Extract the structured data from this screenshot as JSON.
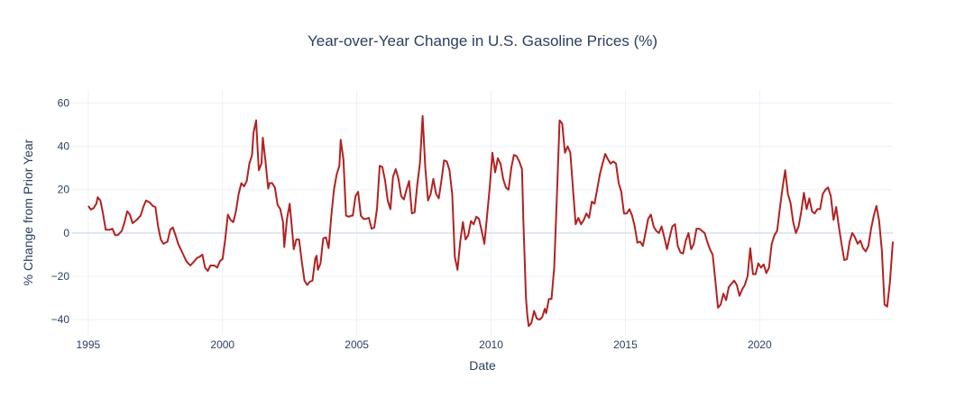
{
  "chart_data": {
    "type": "line",
    "title": "Year-over-Year Change in U.S. Gasoline Prices (%)",
    "xlabel": "Date",
    "ylabel": "% Change from Prior Year",
    "x_ticks": [
      "1995",
      "2000",
      "2005",
      "2010",
      "2015",
      "2020"
    ],
    "x_tick_values": [
      1995,
      2000,
      2005,
      2010,
      2015,
      2020
    ],
    "y_ticks": [
      "−40",
      "−20",
      "0",
      "20",
      "40",
      "60"
    ],
    "y_tick_values": [
      -40,
      -20,
      0,
      20,
      40,
      60
    ],
    "xlim": [
      1994.4,
      2024.96
    ],
    "ylim": [
      -47,
      66
    ],
    "grid": true,
    "colors": {
      "line": "#b22222",
      "grid": "#ebf0f8",
      "text": "#2a3f5f"
    },
    "series": [
      {
        "points": [
          [
            1995.0,
            12.5
          ],
          [
            1995.1,
            10.8
          ],
          [
            1995.2,
            11.5
          ],
          [
            1995.3,
            13.5
          ],
          [
            1995.35,
            16.5
          ],
          [
            1995.45,
            15.0
          ],
          [
            1995.55,
            9.0
          ],
          [
            1995.65,
            1.5
          ],
          [
            1995.8,
            1.5
          ],
          [
            1995.9,
            2.0
          ],
          [
            1996.0,
            -1.0
          ],
          [
            1996.1,
            -1.0
          ],
          [
            1996.25,
            1.0
          ],
          [
            1996.35,
            5.0
          ],
          [
            1996.45,
            10.0
          ],
          [
            1996.55,
            8.5
          ],
          [
            1996.65,
            4.5
          ],
          [
            1996.8,
            6.0
          ],
          [
            1996.95,
            8.0
          ],
          [
            1997.05,
            12.0
          ],
          [
            1997.15,
            15.0
          ],
          [
            1997.3,
            14.0
          ],
          [
            1997.4,
            12.5
          ],
          [
            1997.5,
            12.0
          ],
          [
            1997.6,
            3.0
          ],
          [
            1997.7,
            -3.0
          ],
          [
            1997.8,
            -5.0
          ],
          [
            1997.95,
            -4.0
          ],
          [
            1998.05,
            1.5
          ],
          [
            1998.15,
            2.5
          ],
          [
            1998.25,
            -1.0
          ],
          [
            1998.35,
            -5.0
          ],
          [
            1998.5,
            -9.0
          ],
          [
            1998.65,
            -13.0
          ],
          [
            1998.8,
            -15.0
          ],
          [
            1998.95,
            -13.0
          ],
          [
            1999.05,
            -11.5
          ],
          [
            1999.15,
            -11.0
          ],
          [
            1999.25,
            -10.0
          ],
          [
            1999.35,
            -16.0
          ],
          [
            1999.45,
            -17.5
          ],
          [
            1999.55,
            -15.0
          ],
          [
            1999.7,
            -15.0
          ],
          [
            1999.8,
            -16.0
          ],
          [
            1999.9,
            -13.0
          ],
          [
            2000.0,
            -12.0
          ],
          [
            2000.1,
            -3.0
          ],
          [
            2000.2,
            8.5
          ],
          [
            2000.3,
            6.0
          ],
          [
            2000.4,
            5.0
          ],
          [
            2000.5,
            10.0
          ],
          [
            2000.6,
            18.0
          ],
          [
            2000.7,
            23.0
          ],
          [
            2000.8,
            21.5
          ],
          [
            2000.9,
            24.0
          ],
          [
            2001.0,
            32.0
          ],
          [
            2001.05,
            34.0
          ],
          [
            2001.1,
            36.0
          ],
          [
            2001.15,
            46.0
          ],
          [
            2001.25,
            52.0
          ],
          [
            2001.3,
            40.0
          ],
          [
            2001.35,
            29.0
          ],
          [
            2001.45,
            32.0
          ],
          [
            2001.5,
            44.0
          ],
          [
            2001.6,
            33.0
          ],
          [
            2001.7,
            20.5
          ],
          [
            2001.75,
            23.0
          ],
          [
            2001.85,
            23.0
          ],
          [
            2001.95,
            21.0
          ],
          [
            2002.05,
            13.0
          ],
          [
            2002.15,
            11.0
          ],
          [
            2002.25,
            5.0
          ],
          [
            2002.3,
            -6.5
          ],
          [
            2002.4,
            6.5
          ],
          [
            2002.5,
            13.5
          ],
          [
            2002.6,
            0.0
          ],
          [
            2002.65,
            -7.5
          ],
          [
            2002.75,
            -3.0
          ],
          [
            2002.85,
            -3.0
          ],
          [
            2002.95,
            -13.0
          ],
          [
            2003.05,
            -22.0
          ],
          [
            2003.15,
            -24.0
          ],
          [
            2003.25,
            -22.5
          ],
          [
            2003.35,
            -22.0
          ],
          [
            2003.45,
            -12.0
          ],
          [
            2003.5,
            -10.5
          ],
          [
            2003.55,
            -17.0
          ],
          [
            2003.65,
            -14.0
          ],
          [
            2003.75,
            -2.5
          ],
          [
            2003.85,
            -2.0
          ],
          [
            2003.95,
            -7.0
          ],
          [
            2004.05,
            8.0
          ],
          [
            2004.15,
            20.0
          ],
          [
            2004.25,
            27.0
          ],
          [
            2004.35,
            31.0
          ],
          [
            2004.4,
            43.0
          ],
          [
            2004.5,
            34.0
          ],
          [
            2004.6,
            8.0
          ],
          [
            2004.7,
            7.5
          ],
          [
            2004.8,
            8.0
          ],
          [
            2004.85,
            8.0
          ],
          [
            2004.95,
            17.0
          ],
          [
            2005.05,
            19.0
          ],
          [
            2005.15,
            8.0
          ],
          [
            2005.25,
            6.5
          ],
          [
            2005.35,
            6.5
          ],
          [
            2005.45,
            7.0
          ],
          [
            2005.55,
            2.0
          ],
          [
            2005.65,
            2.5
          ],
          [
            2005.75,
            11.0
          ],
          [
            2005.85,
            31.0
          ],
          [
            2005.95,
            30.5
          ],
          [
            2006.05,
            24.5
          ],
          [
            2006.15,
            15.0
          ],
          [
            2006.25,
            11.0
          ],
          [
            2006.35,
            26.0
          ],
          [
            2006.45,
            29.5
          ],
          [
            2006.55,
            25.0
          ],
          [
            2006.65,
            17.0
          ],
          [
            2006.75,
            15.5
          ],
          [
            2006.85,
            20.0
          ],
          [
            2006.95,
            24.0
          ],
          [
            2007.05,
            9.0
          ],
          [
            2007.15,
            9.5
          ],
          [
            2007.25,
            22.0
          ],
          [
            2007.35,
            32.0
          ],
          [
            2007.45,
            54.0
          ],
          [
            2007.55,
            30.0
          ],
          [
            2007.65,
            15.0
          ],
          [
            2007.75,
            18.0
          ],
          [
            2007.85,
            25.0
          ],
          [
            2007.95,
            18.0
          ],
          [
            2008.05,
            16.0
          ],
          [
            2008.15,
            24.0
          ],
          [
            2008.25,
            33.5
          ],
          [
            2008.35,
            33.0
          ],
          [
            2008.45,
            29.0
          ],
          [
            2008.55,
            18.0
          ],
          [
            2008.65,
            -11.0
          ],
          [
            2008.75,
            -17.0
          ],
          [
            2008.85,
            -4.0
          ],
          [
            2008.95,
            5.0
          ],
          [
            2009.05,
            -3.0
          ],
          [
            2009.15,
            -1.0
          ],
          [
            2009.25,
            5.5
          ],
          [
            2009.35,
            4.0
          ],
          [
            2009.45,
            7.5
          ],
          [
            2009.55,
            6.5
          ],
          [
            2009.65,
            1.0
          ],
          [
            2009.75,
            -5.0
          ],
          [
            2009.85,
            8.0
          ],
          [
            2009.95,
            21.0
          ],
          [
            2010.05,
            37.0
          ],
          [
            2010.15,
            28.0
          ],
          [
            2010.25,
            34.5
          ],
          [
            2010.35,
            32.0
          ],
          [
            2010.45,
            25.0
          ],
          [
            2010.55,
            21.0
          ],
          [
            2010.65,
            20.0
          ],
          [
            2010.75,
            30.0
          ],
          [
            2010.85,
            36.0
          ],
          [
            2010.95,
            35.5
          ],
          [
            2011.05,
            33.0
          ],
          [
            2011.15,
            29.5
          ],
          [
            2011.2,
            6.0
          ],
          [
            2011.3,
            -30.0
          ],
          [
            2011.35,
            -38.0
          ],
          [
            2011.4,
            -43.0
          ],
          [
            2011.5,
            -41.5
          ],
          [
            2011.6,
            -36.0
          ],
          [
            2011.7,
            -39.5
          ],
          [
            2011.8,
            -40.0
          ],
          [
            2011.9,
            -39.0
          ],
          [
            2012.0,
            -35.0
          ],
          [
            2012.05,
            -37.0
          ],
          [
            2012.15,
            -30.5
          ],
          [
            2012.25,
            -30.5
          ],
          [
            2012.35,
            -16.0
          ],
          [
            2012.45,
            17.0
          ],
          [
            2012.55,
            52.0
          ],
          [
            2012.65,
            50.5
          ],
          [
            2012.75,
            37.0
          ],
          [
            2012.85,
            40.0
          ],
          [
            2012.95,
            37.0
          ],
          [
            2013.05,
            20.0
          ],
          [
            2013.15,
            4.0
          ],
          [
            2013.25,
            7.0
          ],
          [
            2013.35,
            4.0
          ],
          [
            2013.45,
            6.0
          ],
          [
            2013.55,
            9.0
          ],
          [
            2013.65,
            7.0
          ],
          [
            2013.75,
            14.5
          ],
          [
            2013.85,
            13.5
          ],
          [
            2013.95,
            20.0
          ],
          [
            2014.05,
            27.0
          ],
          [
            2014.15,
            32.0
          ],
          [
            2014.25,
            36.5
          ],
          [
            2014.35,
            34.0
          ],
          [
            2014.45,
            32.0
          ],
          [
            2014.55,
            33.0
          ],
          [
            2014.65,
            32.0
          ],
          [
            2014.75,
            23.0
          ],
          [
            2014.85,
            19.0
          ],
          [
            2014.95,
            9.0
          ],
          [
            2015.05,
            9.0
          ],
          [
            2015.15,
            11.0
          ],
          [
            2015.25,
            8.0
          ],
          [
            2015.35,
            3.0
          ],
          [
            2015.45,
            -4.5
          ],
          [
            2015.55,
            -4.0
          ],
          [
            2015.65,
            -6.0
          ],
          [
            2015.75,
            0.0
          ],
          [
            2015.85,
            6.5
          ],
          [
            2015.95,
            8.5
          ],
          [
            2016.05,
            3.0
          ],
          [
            2016.15,
            1.0
          ],
          [
            2016.25,
            0.0
          ],
          [
            2016.35,
            3.0
          ],
          [
            2016.45,
            -2.0
          ],
          [
            2016.55,
            -7.5
          ],
          [
            2016.65,
            -2.0
          ],
          [
            2016.75,
            3.0
          ],
          [
            2016.85,
            4.0
          ],
          [
            2016.95,
            -6.0
          ],
          [
            2017.05,
            -9.0
          ],
          [
            2017.15,
            -9.5
          ],
          [
            2017.25,
            -3.5
          ],
          [
            2017.35,
            0.0
          ],
          [
            2017.45,
            -7.5
          ],
          [
            2017.55,
            -5.0
          ],
          [
            2017.65,
            2.0
          ],
          [
            2017.75,
            2.0
          ],
          [
            2017.85,
            1.0
          ],
          [
            2017.95,
            0.0
          ],
          [
            2018.05,
            -4.0
          ],
          [
            2018.15,
            -7.5
          ],
          [
            2018.25,
            -10.0
          ],
          [
            2018.35,
            -22.0
          ],
          [
            2018.45,
            -34.5
          ],
          [
            2018.55,
            -33.0
          ],
          [
            2018.65,
            -28.0
          ],
          [
            2018.75,
            -31.0
          ],
          [
            2018.85,
            -25.0
          ],
          [
            2018.95,
            -23.5
          ],
          [
            2019.05,
            -22.0
          ],
          [
            2019.15,
            -24.0
          ],
          [
            2019.25,
            -29.0
          ],
          [
            2019.35,
            -26.0
          ],
          [
            2019.45,
            -24.0
          ],
          [
            2019.55,
            -20.0
          ],
          [
            2019.65,
            -7.0
          ],
          [
            2019.75,
            -19.0
          ],
          [
            2019.85,
            -19.0
          ],
          [
            2019.95,
            -14.0
          ],
          [
            2020.05,
            -16.0
          ],
          [
            2020.15,
            -14.5
          ],
          [
            2020.25,
            -18.5
          ],
          [
            2020.35,
            -16.0
          ],
          [
            2020.45,
            -5.0
          ],
          [
            2020.55,
            -1.0
          ],
          [
            2020.65,
            1.0
          ],
          [
            2020.75,
            11.0
          ],
          [
            2020.85,
            20.5
          ],
          [
            2020.95,
            29.0
          ],
          [
            2021.05,
            18.0
          ],
          [
            2021.15,
            14.0
          ],
          [
            2021.25,
            5.0
          ],
          [
            2021.35,
            0.0
          ],
          [
            2021.45,
            3.0
          ],
          [
            2021.55,
            10.0
          ],
          [
            2021.65,
            18.5
          ],
          [
            2021.75,
            11.0
          ],
          [
            2021.85,
            16.0
          ],
          [
            2021.95,
            10.0
          ],
          [
            2022.05,
            9.0
          ],
          [
            2022.15,
            11.0
          ],
          [
            2022.25,
            11.0
          ],
          [
            2022.35,
            18.0
          ],
          [
            2022.45,
            20.0
          ],
          [
            2022.55,
            21.0
          ],
          [
            2022.65,
            17.0
          ],
          [
            2022.75,
            6.0
          ],
          [
            2022.85,
            12.0
          ],
          [
            2022.95,
            3.0
          ],
          [
            2023.05,
            -5.0
          ],
          [
            2023.15,
            -12.5
          ],
          [
            2023.25,
            -12.0
          ],
          [
            2023.35,
            -4.0
          ],
          [
            2023.45,
            0.0
          ],
          [
            2023.55,
            -2.0
          ],
          [
            2023.65,
            -5.0
          ],
          [
            2023.75,
            -3.5
          ],
          [
            2023.85,
            -7.0
          ],
          [
            2023.95,
            -8.5
          ],
          [
            2024.05,
            -6.0
          ],
          [
            2024.15,
            2.0
          ],
          [
            2024.25,
            8.0
          ],
          [
            2024.35,
            12.5
          ],
          [
            2024.45,
            5.5
          ],
          [
            2024.55,
            -8.0
          ],
          [
            2024.65,
            -33.0
          ],
          [
            2024.75,
            -34.0
          ],
          [
            2024.85,
            -23.0
          ],
          [
            2024.96,
            -4.0
          ]
        ]
      }
    ]
  }
}
